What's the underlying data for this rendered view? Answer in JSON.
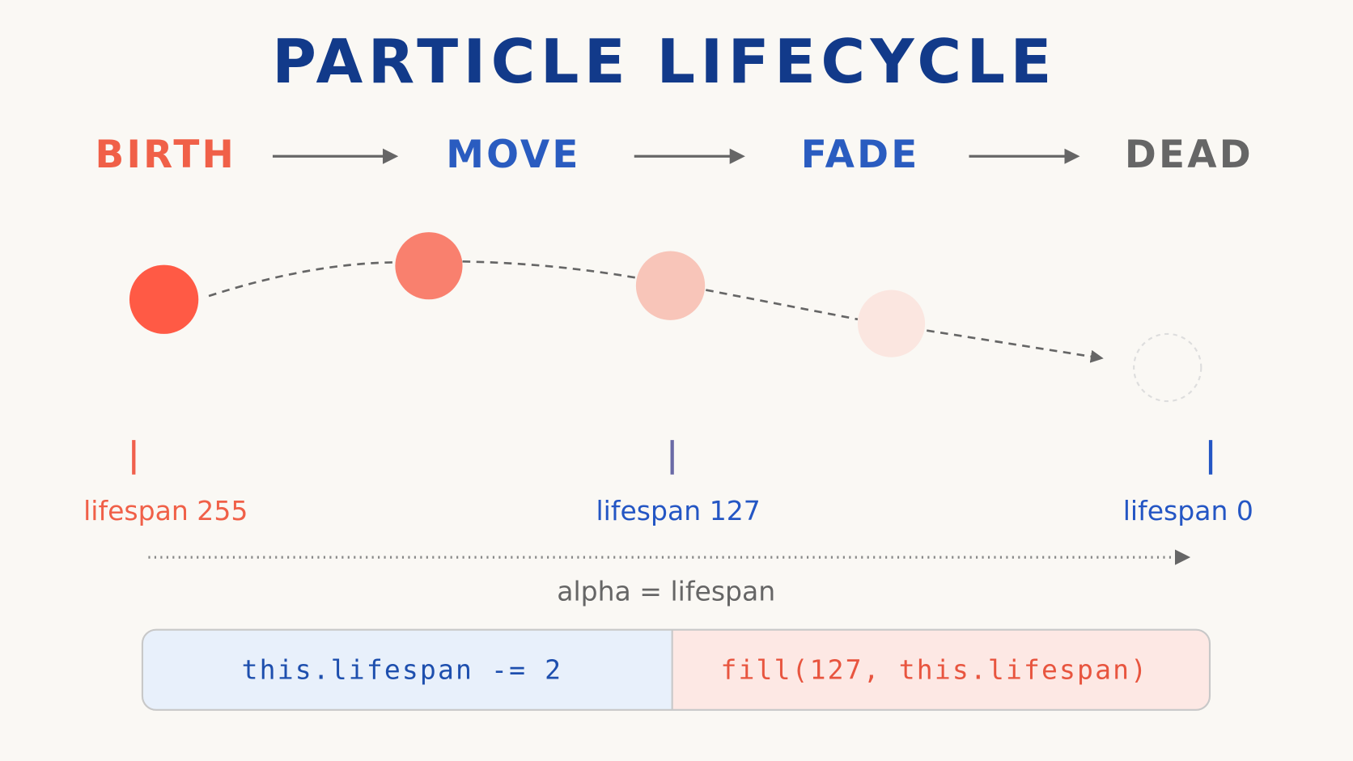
{
  "title": "PARTICLE LIFECYCLE",
  "stages": [
    "BIRTH",
    "MOVE",
    "FADE",
    "DEAD"
  ],
  "timeline": {
    "labels": [
      "lifespan 255",
      "lifespan 127",
      "lifespan 0"
    ]
  },
  "formula": "alpha = lifespan",
  "code": [
    "this.lifespan -= 2",
    "fill(127, this.lifespan)"
  ]
}
